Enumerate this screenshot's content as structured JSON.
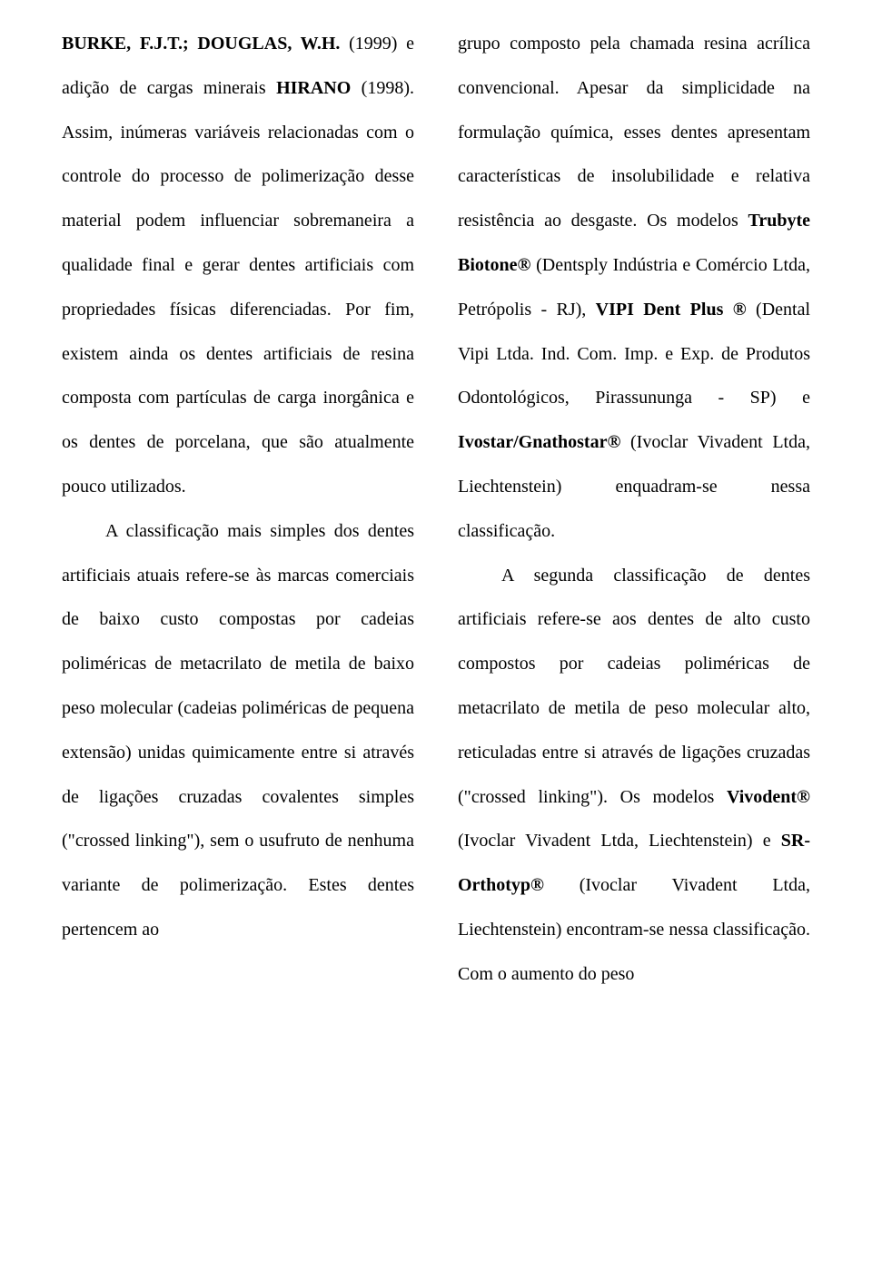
{
  "leftColumn": {
    "p1": [
      {
        "text": "BURKE, F.J.T.; DOUGLAS, W.H.",
        "bold": true
      },
      {
        "text": " (1999) e adição de cargas minerais "
      },
      {
        "text": "HIRANO",
        "bold": true
      },
      {
        "text": " (1998). Assim, inúmeras variáveis relacionadas com o controle do processo de polimerização desse material podem influenciar sobremaneira a qualidade final e gerar dentes artificiais com propriedades físicas diferenciadas. Por fim, existem ainda os dentes artificiais de resina composta com partículas de carga inorgânica e os dentes de porcelana, que são atualmente pouco utilizados."
      }
    ],
    "p2": [
      {
        "text": "A classificação mais simples dos dentes artificiais atuais refere-se às marcas comerciais de baixo custo compostas por cadeias poliméricas de metacrilato de metila de baixo peso molecular (cadeias poliméricas de pequena extensão) unidas quimicamente entre si através de ligações cruzadas covalentes simples (\"crossed linking\"), sem o usufruto de nenhuma variante de polimerização. Estes dentes pertencem ao"
      }
    ]
  },
  "rightColumn": {
    "p1": [
      {
        "text": "grupo composto pela chamada resina acrílica convencional. Apesar da simplicidade na formulação química, esses dentes apresentam características de insolubilidade e relativa resistência ao desgaste. Os modelos "
      },
      {
        "text": "Trubyte Biotone®",
        "bold": true
      },
      {
        "text": " (Dentsply Indústria e Comércio Ltda, Petrópolis - RJ), "
      },
      {
        "text": "VIPI Dent Plus ®",
        "bold": true
      },
      {
        "text": " (Dental Vipi Ltda. Ind. Com. Imp. e Exp. de Produtos Odontológicos, Pirassununga - SP) e "
      },
      {
        "text": "Ivostar/Gnathostar®",
        "bold": true
      },
      {
        "text": " (Ivoclar Vivadent Ltda, Liechtenstein) enquadram-se nessa classificação."
      }
    ],
    "p2": [
      {
        "text": "A segunda classificação de dentes artificiais refere-se aos dentes de alto custo compostos por cadeias poliméricas de metacrilato de metila de peso molecular alto, reticuladas entre si através de ligações cruzadas (\"crossed linking\"). Os modelos "
      },
      {
        "text": "Vivodent®",
        "bold": true
      },
      {
        "text": " (Ivoclar Vivadent Ltda, Liechtenstein) e "
      },
      {
        "text": "SR-Orthotyp®",
        "bold": true
      },
      {
        "text": " (Ivoclar Vivadent Ltda, Liechtenstein) encontram-se nessa classificação. Com o aumento do peso"
      }
    ]
  }
}
